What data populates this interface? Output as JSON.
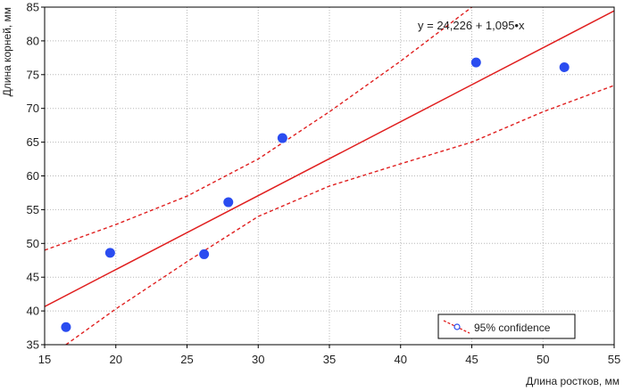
{
  "chart_data": {
    "type": "scatter",
    "xlabel": "Длина ростков, мм",
    "ylabel": "Длина корней, мм",
    "xlim": [
      15,
      55
    ],
    "ylim": [
      35,
      85
    ],
    "x_ticks": [
      15,
      20,
      25,
      30,
      35,
      40,
      45,
      50,
      55
    ],
    "y_ticks": [
      35,
      40,
      45,
      50,
      55,
      60,
      65,
      70,
      75,
      80,
      85
    ],
    "grid": "dotted",
    "points": [
      {
        "x": 16.5,
        "y": 37.6
      },
      {
        "x": 19.6,
        "y": 48.6
      },
      {
        "x": 26.2,
        "y": 48.4
      },
      {
        "x": 27.9,
        "y": 56.1
      },
      {
        "x": 31.7,
        "y": 65.6
      },
      {
        "x": 45.3,
        "y": 76.8
      },
      {
        "x": 51.5,
        "y": 76.1
      }
    ],
    "regression": {
      "intercept": 24.226,
      "slope": 1.095,
      "equation": "y = 24,226 + 1,095•x"
    },
    "confidence_band": {
      "label": "95% confidence",
      "upper": [
        [
          15,
          49.0
        ],
        [
          20,
          52.8
        ],
        [
          25,
          57.0
        ],
        [
          30,
          62.5
        ],
        [
          35,
          69.5
        ],
        [
          40,
          77.0
        ],
        [
          45,
          85.0
        ]
      ],
      "lower": [
        [
          16.5,
          35.0
        ],
        [
          20,
          40.3
        ],
        [
          25,
          47.3
        ],
        [
          30,
          54.0
        ],
        [
          35,
          58.5
        ],
        [
          40,
          61.8
        ],
        [
          45,
          65.0
        ],
        [
          50,
          69.5
        ],
        [
          55,
          73.4
        ]
      ]
    },
    "legend": {
      "position": "bottom-right",
      "label": "95% confidence"
    },
    "colors": {
      "points": "#2a4cf0",
      "line": "#e01f1f",
      "frame": "#000000"
    }
  }
}
